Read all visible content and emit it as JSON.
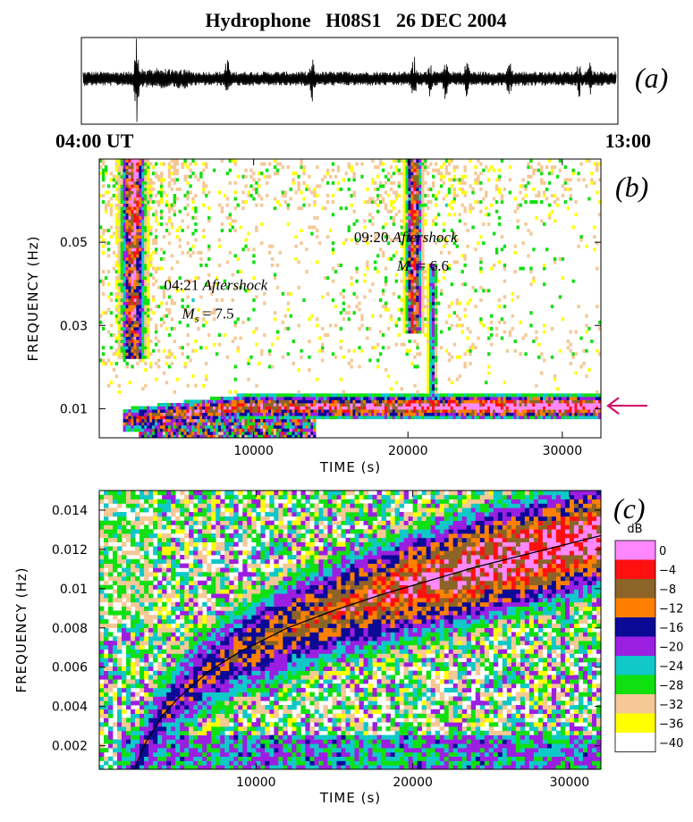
{
  "figure": {
    "title": "Hydrophone   H08S1   26 DEC 2004"
  },
  "chart_data": [
    {
      "panel": "(a)",
      "type": "line",
      "description_label": "waveform",
      "x_start_label": "04:00 UT",
      "x_end_label": "13:00",
      "event_bursts_fraction": [
        0.1,
        0.27,
        0.43,
        0.62,
        0.65,
        0.68,
        0.72,
        0.8,
        0.93,
        0.95
      ]
    },
    {
      "panel": "(b)",
      "type": "heatmap",
      "xlabel": "TIME (s)",
      "ylabel": "FREQUENCY (Hz)",
      "xlim": [
        0,
        32500
      ],
      "ylim": [
        0.003,
        0.07
      ],
      "xticks": [
        10000,
        20000,
        30000
      ],
      "xtick_labels": [
        "10000",
        "20000",
        "30000"
      ],
      "yticks": [
        0.01,
        0.03,
        0.05
      ],
      "ytick_labels": [
        "0.01",
        "0.03",
        "0.05"
      ],
      "annotations": [
        {
          "time_label": "04:21",
          "text": "Aftershock",
          "magnitude_label": "M",
          "magnitude_sub": "s",
          "magnitude_value": " = 7.5",
          "x": 4200,
          "y": 0.0385
        },
        {
          "time_label": "09:20",
          "text": "Aftershock",
          "magnitude_label": "M",
          "magnitude_sub": "s",
          "magnitude_value": " = 6.6",
          "x": 16500,
          "y": 0.05
        }
      ],
      "arrow_at_frequency": 0.0105,
      "arrow_color": "#d0106a"
    },
    {
      "panel": "(c)",
      "type": "heatmap",
      "xlabel": "TIME (s)",
      "ylabel": "FREQUENCY (Hz)",
      "xlim": [
        0,
        32000
      ],
      "ylim": [
        0.0008,
        0.015
      ],
      "xticks": [
        10000,
        20000,
        30000
      ],
      "xtick_labels": [
        "10000",
        "20000",
        "30000"
      ],
      "yticks": [
        0.002,
        0.004,
        0.006,
        0.008,
        0.01,
        0.012,
        0.014
      ],
      "ytick_labels": [
        "0.002",
        "0.004",
        "0.006",
        "0.008",
        "0.01",
        "0.012",
        "0.014"
      ],
      "dispersion_curve": {
        "x": [
          2300,
          2500,
          3000,
          4000,
          5000,
          7000,
          9000,
          12000,
          15000,
          18000,
          21000,
          24000,
          27000,
          30000,
          32000
        ],
        "y": [
          0.0008,
          0.0013,
          0.0022,
          0.0035,
          0.0044,
          0.0058,
          0.0068,
          0.008,
          0.0089,
          0.0097,
          0.0104,
          0.0111,
          0.0117,
          0.0123,
          0.0127
        ]
      }
    }
  ],
  "colorbar": {
    "unit": "dB",
    "levels": [
      {
        "label": "0",
        "color": "#ff88ff"
      },
      {
        "label": "−4",
        "color": "#ff1010"
      },
      {
        "label": "−8",
        "color": "#8c6428"
      },
      {
        "label": "−12",
        "color": "#ff8000"
      },
      {
        "label": "−16",
        "color": "#0a0a96"
      },
      {
        "label": "−20",
        "color": "#9b1fe0"
      },
      {
        "label": "−24",
        "color": "#10c8c8"
      },
      {
        "label": "−28",
        "color": "#10e010"
      },
      {
        "label": "−32",
        "color": "#f5c896"
      },
      {
        "label": "−36",
        "color": "#ffff00"
      },
      {
        "label": "−40",
        "color": "#ffffff"
      }
    ]
  }
}
